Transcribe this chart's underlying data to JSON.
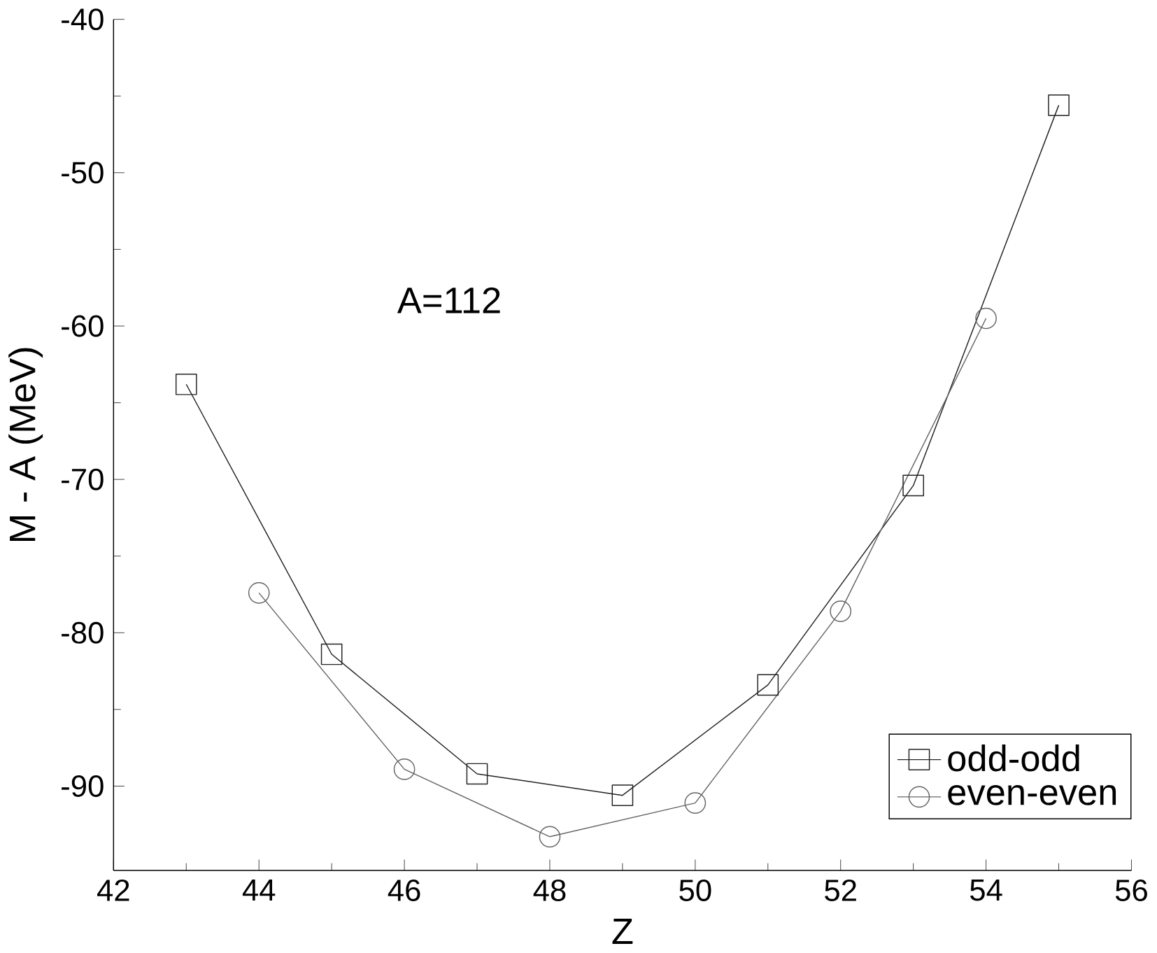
{
  "chart_data": {
    "type": "line",
    "xlabel": "Z",
    "ylabel": "M - A (MeV)",
    "annotations": [
      "A=112"
    ],
    "xlim": [
      42,
      56
    ],
    "xticks": [
      42,
      44,
      46,
      48,
      50,
      52,
      54,
      56
    ],
    "ylim": [
      -95.5,
      -40
    ],
    "yticks": [
      -90,
      -80,
      -70,
      -60,
      -50,
      -40
    ],
    "grid": false,
    "legend": "bottom right",
    "series": [
      {
        "name": "odd-odd",
        "color": "#222222",
        "marker": "square",
        "x": [
          43,
          45,
          47,
          49,
          51,
          53,
          55
        ],
        "values": [
          -63.8,
          -81.4,
          -89.2,
          -90.6,
          -83.4,
          -70.4,
          -45.6
        ]
      },
      {
        "name": "even-even",
        "color": "#666666",
        "marker": "circle",
        "x": [
          44,
          46,
          48,
          50,
          52,
          54
        ],
        "values": [
          -77.4,
          -88.9,
          -93.3,
          -91.1,
          -78.6,
          -59.5
        ]
      }
    ]
  }
}
